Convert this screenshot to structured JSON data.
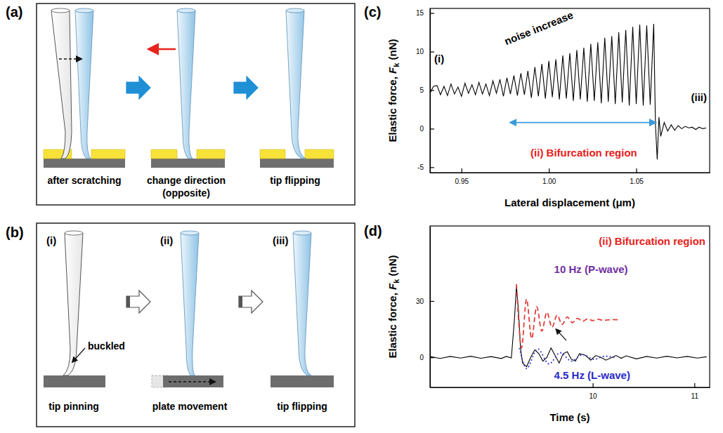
{
  "diagrams": [
    {
      "panel_label": "(a)",
      "steps": [
        {
          "caption": [
            "after scratching"
          ]
        },
        {
          "caption": [
            "change direction",
            "(opposite)"
          ]
        },
        {
          "caption": [
            "tip flipping"
          ]
        }
      ]
    },
    {
      "panel_label": "(b)",
      "steps": [
        {
          "tag": "(i)",
          "caption": [
            "tip pinning"
          ],
          "note": "buckled"
        },
        {
          "tag": "(ii)",
          "caption": [
            "plate movement"
          ]
        },
        {
          "tag": "(iii)",
          "caption": [
            "tip flipping"
          ]
        }
      ]
    }
  ],
  "chart_data": [
    {
      "panel_label": "(c)",
      "type": "line",
      "xlabel": "Lateral displacement (μm)",
      "ylabel": [
        "Elastic force, ",
        "F",
        "k",
        " (nN)"
      ],
      "color": "#000000",
      "x": [
        0.932,
        0.934,
        0.936,
        0.938,
        0.94,
        0.942,
        0.944,
        0.946,
        0.948,
        0.95,
        0.952,
        0.954,
        0.956,
        0.958,
        0.96,
        0.962,
        0.964,
        0.966,
        0.968,
        0.97,
        0.972,
        0.974,
        0.976,
        0.978,
        0.98,
        0.982,
        0.984,
        0.986,
        0.988,
        0.99,
        0.992,
        0.994,
        0.996,
        0.998,
        1,
        1.002,
        1.004,
        1.006,
        1.008,
        1.01,
        1.012,
        1.014,
        1.016,
        1.018,
        1.02,
        1.022,
        1.024,
        1.026,
        1.028,
        1.03,
        1.032,
        1.034,
        1.036,
        1.038,
        1.04,
        1.042,
        1.044,
        1.046,
        1.048,
        1.05,
        1.052,
        1.054,
        1.056,
        1.058,
        1.06,
        1.061,
        1.062,
        1.063,
        1.064,
        1.066,
        1.068,
        1.07,
        1.072,
        1.074,
        1.076,
        1.078,
        1.08,
        1.082,
        1.084,
        1.086,
        1.088,
        1.09
      ],
      "values": [
        4.6,
        5.5,
        5.6,
        4.4,
        5.5,
        4.3,
        5.8,
        4.5,
        5.4,
        4.2,
        5.9,
        4.6,
        5.7,
        4.4,
        6.0,
        4.5,
        5.8,
        4.3,
        6.2,
        4.6,
        6.4,
        4.2,
        6.6,
        4.5,
        6.9,
        4.3,
        7.2,
        4.4,
        7.5,
        4.0,
        8.0,
        4.2,
        8.4,
        3.9,
        8.8,
        4.1,
        9.0,
        3.8,
        9.5,
        3.9,
        9.8,
        3.6,
        10.2,
        3.8,
        10.5,
        3.5,
        11.0,
        3.6,
        11.2,
        3.3,
        11.8,
        3.5,
        12.0,
        3.2,
        12.5,
        3.4,
        12.8,
        3.0,
        13.2,
        3.2,
        13.5,
        3.0,
        13.4,
        3.1,
        13.6,
        0.5,
        -4.0,
        1.5,
        -1.0,
        0.8,
        -0.3,
        0.5,
        -0.2,
        0.4,
        0.0,
        0.3,
        0.1,
        0.2,
        -0.1,
        0.2,
        0.0,
        0.1
      ],
      "xlim": [
        0.932,
        1.092
      ],
      "xticks": [
        0.95,
        {
          "value": 1,
          "label": "1.00"
        },
        1.05
      ],
      "ylim": [
        -5.7,
        15.6
      ],
      "yticks": [
        -5,
        0,
        5,
        10,
        15
      ],
      "annotations": [
        {
          "text": "(i)",
          "color": "#000000"
        },
        {
          "text": "noise increase",
          "color": "#000000"
        },
        {
          "text": "(ii) Bifurcation region",
          "color": "#e8201a"
        },
        {
          "text": "(iii)",
          "color": "#000000"
        }
      ]
    },
    {
      "panel_label": "(d)",
      "type": "line",
      "xlabel": "Time (s)",
      "ylabel": [
        "Elastic force, ",
        "F",
        "k",
        " (nN)"
      ],
      "xlim": [
        8.4,
        11.15
      ],
      "xticks": [
        10,
        11
      ],
      "ylim": [
        -16,
        70
      ],
      "yticks": [
        0,
        30
      ],
      "series": [
        {
          "color": "#000000",
          "line_style": "solid",
          "x": [
            8.4,
            8.5,
            8.6,
            8.7,
            8.8,
            8.9,
            9.0,
            9.1,
            9.15,
            9.2,
            9.23,
            9.25,
            9.27,
            9.29,
            9.31,
            9.35,
            9.39,
            9.43,
            9.47,
            9.51,
            9.55,
            9.59,
            9.63,
            9.67,
            9.71,
            9.75,
            9.79,
            9.83,
            9.87,
            9.93,
            9.98,
            10.03,
            10.08,
            10.13,
            10.23,
            10.28,
            10.33,
            10.43,
            10.53,
            10.63,
            10.73,
            10.83,
            10.93,
            11.03,
            11.12
          ],
          "values": [
            0.4,
            -0.6,
            0.5,
            -0.4,
            0.6,
            -0.5,
            0.4,
            -0.6,
            0.5,
            -0.3,
            20,
            38,
            25,
            5,
            -3,
            -5,
            0,
            4,
            2,
            -2,
            0,
            5,
            1,
            -3,
            2,
            3,
            -1,
            -2,
            2,
            1,
            -1.5,
            1,
            0,
            -1.5,
            1,
            -0.5,
            0.8,
            -0.8,
            0.5,
            -0.4,
            0.6,
            -0.3,
            0.5,
            -0.4,
            0.3
          ]
        },
        {
          "color": "#e0413c",
          "line_style": "dashed",
          "x": [
            9.25,
            9.3,
            9.35,
            9.4,
            9.45,
            9.5,
            9.55,
            9.6,
            9.65,
            9.7,
            9.75,
            9.8,
            9.85,
            9.9,
            9.95,
            10,
            10.05,
            10.1,
            10.18,
            10.25
          ],
          "values": [
            39,
            5,
            31,
            10,
            27,
            14,
            24,
            16,
            22.5,
            17.5,
            21.5,
            18.5,
            20.8,
            19.2,
            20.5,
            19.6,
            20.3,
            19.8,
            20.1,
            20
          ]
        },
        {
          "color": "#3b3bd1",
          "line_style": "dotted",
          "x": [
            9.28,
            9.35,
            9.46,
            9.57,
            9.68,
            9.79,
            9.9,
            10.01,
            10.12,
            10.23
          ],
          "values": [
            5,
            -6,
            4.5,
            -3.5,
            2.5,
            -2,
            1.5,
            -1,
            0.6,
            -0.3
          ]
        }
      ],
      "annotations": [
        {
          "text": "(ii) Bifurcation region",
          "color": "#e8201a"
        },
        {
          "text": "10 Hz (P-wave)",
          "color": "#7030a0"
        },
        {
          "text": "4.5 Hz (L-wave)",
          "color": "#2929c8"
        }
      ]
    }
  ]
}
